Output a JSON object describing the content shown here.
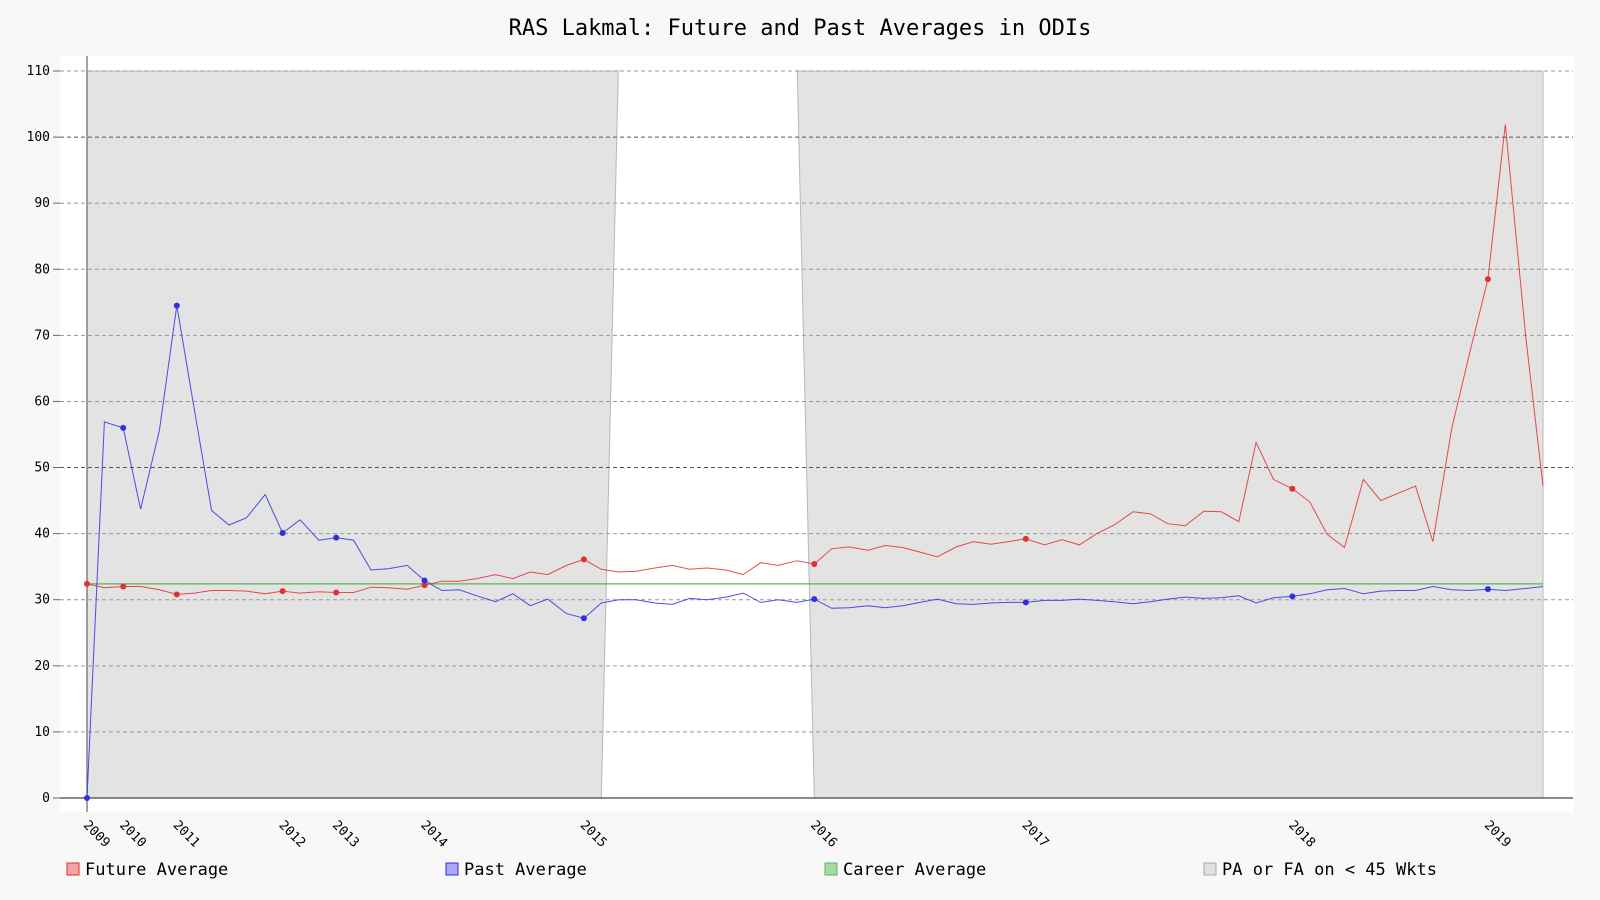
{
  "chart_data": {
    "type": "line",
    "title": "RAS Lakmal: Future and Past Averages in ODIs",
    "xlabel": "",
    "ylabel": "",
    "ylim": [
      0,
      110
    ],
    "yticks": [
      0,
      10,
      20,
      30,
      40,
      50,
      60,
      70,
      80,
      90,
      100,
      110
    ],
    "xlim": [
      2009.0,
      2019.6
    ],
    "xticks": [
      {
        "label": "2009",
        "x": 2009.0
      },
      {
        "label": "2010",
        "x": 2009.25
      },
      {
        "label": "2011",
        "x": 2009.62
      },
      {
        "label": "2012",
        "x": 2010.35
      },
      {
        "label": "2013",
        "x": 2010.72
      },
      {
        "label": "2014",
        "x": 2011.33
      },
      {
        "label": "2015",
        "x": 2012.43
      },
      {
        "label": "2016",
        "x": 2014.02
      },
      {
        "label": "2017",
        "x": 2015.48
      },
      {
        "label": "2018",
        "x": 2017.32
      },
      {
        "label": "2019",
        "x": 2018.67
      }
    ],
    "grid": true,
    "legend_position": "bottom",
    "colors": {
      "future": "#e03030",
      "past": "#3030e0",
      "career": "#5ab45a",
      "shade": "#e3e3e3",
      "grid": "#888888"
    },
    "shaded_regions": [
      {
        "from": 2009.0,
        "to": 2012.55
      },
      {
        "from": 2014.02,
        "to": 2019.05
      }
    ],
    "shade_name": "PA or FA on < 45 Wkts",
    "career_average": {
      "name": "Career Average",
      "value": 32.4
    },
    "series": [
      {
        "name": "Future Average",
        "key": "future",
        "points": [
          [
            2009.0,
            32.4
          ],
          [
            2009.12,
            31.8
          ],
          [
            2009.25,
            32.0
          ],
          [
            2009.37,
            32.0
          ],
          [
            2009.5,
            31.5
          ],
          [
            2009.62,
            30.8
          ],
          [
            2009.74,
            31.0
          ],
          [
            2009.86,
            31.4
          ],
          [
            2009.98,
            31.4
          ],
          [
            2010.1,
            31.3
          ],
          [
            2010.23,
            30.9
          ],
          [
            2010.35,
            31.3
          ],
          [
            2010.47,
            31.0
          ],
          [
            2010.6,
            31.2
          ],
          [
            2010.72,
            31.1
          ],
          [
            2010.84,
            31.1
          ],
          [
            2010.96,
            31.9
          ],
          [
            2011.08,
            31.8
          ],
          [
            2011.21,
            31.6
          ],
          [
            2011.33,
            32.2
          ],
          [
            2011.45,
            32.8
          ],
          [
            2011.57,
            32.8
          ],
          [
            2011.69,
            33.2
          ],
          [
            2011.82,
            33.8
          ],
          [
            2011.94,
            33.2
          ],
          [
            2012.06,
            34.2
          ],
          [
            2012.18,
            33.8
          ],
          [
            2012.31,
            35.2
          ],
          [
            2012.43,
            36.1
          ],
          [
            2012.55,
            34.6
          ],
          [
            2012.67,
            34.2
          ],
          [
            2012.79,
            34.3
          ],
          [
            2012.92,
            34.8
          ],
          [
            2013.04,
            35.2
          ],
          [
            2013.16,
            34.6
          ],
          [
            2013.28,
            34.8
          ],
          [
            2013.41,
            34.5
          ],
          [
            2013.53,
            33.8
          ],
          [
            2013.65,
            35.6
          ],
          [
            2013.77,
            35.2
          ],
          [
            2013.9,
            35.9
          ],
          [
            2014.02,
            35.4
          ],
          [
            2014.14,
            37.7
          ],
          [
            2014.26,
            38.0
          ],
          [
            2014.39,
            37.5
          ],
          [
            2014.51,
            38.2
          ],
          [
            2014.63,
            37.9
          ],
          [
            2014.75,
            37.2
          ],
          [
            2014.87,
            36.5
          ],
          [
            2015.0,
            38.0
          ],
          [
            2015.12,
            38.8
          ],
          [
            2015.24,
            38.4
          ],
          [
            2015.36,
            38.8
          ],
          [
            2015.48,
            39.2
          ],
          [
            2015.61,
            38.3
          ],
          [
            2015.73,
            39.1
          ],
          [
            2015.85,
            38.3
          ],
          [
            2015.97,
            40.0
          ],
          [
            2016.09,
            41.3
          ],
          [
            2016.22,
            43.3
          ],
          [
            2016.34,
            43.0
          ],
          [
            2016.46,
            41.5
          ],
          [
            2016.58,
            41.2
          ],
          [
            2016.71,
            43.4
          ],
          [
            2016.83,
            43.3
          ],
          [
            2016.95,
            41.8
          ],
          [
            2017.07,
            53.8
          ],
          [
            2017.19,
            48.2
          ],
          [
            2017.32,
            46.8
          ],
          [
            2017.44,
            44.8
          ],
          [
            2017.56,
            39.9
          ],
          [
            2017.68,
            37.9
          ],
          [
            2017.81,
            48.2
          ],
          [
            2017.93,
            45.0
          ],
          [
            2018.05,
            46.1
          ],
          [
            2018.17,
            47.2
          ],
          [
            2018.29,
            38.8
          ],
          [
            2018.42,
            55.9
          ],
          [
            2018.54,
            67.0
          ],
          [
            2018.67,
            78.5
          ],
          [
            2018.79,
            101.9
          ],
          [
            2018.93,
            70.0
          ],
          [
            2019.05,
            47.2
          ]
        ],
        "markers": [
          [
            2009.0,
            32.4
          ],
          [
            2009.25,
            32.0
          ],
          [
            2009.62,
            30.8
          ],
          [
            2010.35,
            31.3
          ],
          [
            2010.72,
            31.1
          ],
          [
            2011.33,
            32.2
          ],
          [
            2012.43,
            36.1
          ],
          [
            2014.02,
            35.4
          ],
          [
            2015.48,
            39.2
          ],
          [
            2017.32,
            46.8
          ],
          [
            2018.67,
            78.5
          ]
        ]
      },
      {
        "name": "Past Average",
        "key": "past",
        "points": [
          [
            2009.0,
            0.0
          ],
          [
            2009.12,
            56.9
          ],
          [
            2009.25,
            56.0
          ],
          [
            2009.37,
            43.7
          ],
          [
            2009.5,
            55.6
          ],
          [
            2009.62,
            74.5
          ],
          [
            2009.74,
            58.9
          ],
          [
            2009.86,
            43.5
          ],
          [
            2009.98,
            41.3
          ],
          [
            2010.1,
            42.4
          ],
          [
            2010.23,
            45.9
          ],
          [
            2010.35,
            40.1
          ],
          [
            2010.47,
            42.1
          ],
          [
            2010.6,
            39.0
          ],
          [
            2010.72,
            39.4
          ],
          [
            2010.84,
            39.0
          ],
          [
            2010.96,
            34.5
          ],
          [
            2011.08,
            34.7
          ],
          [
            2011.21,
            35.2
          ],
          [
            2011.33,
            32.9
          ],
          [
            2011.45,
            31.4
          ],
          [
            2011.57,
            31.5
          ],
          [
            2011.69,
            30.6
          ],
          [
            2011.82,
            29.7
          ],
          [
            2011.94,
            30.9
          ],
          [
            2012.06,
            29.1
          ],
          [
            2012.18,
            30.1
          ],
          [
            2012.31,
            27.9
          ],
          [
            2012.43,
            27.2
          ],
          [
            2012.55,
            29.5
          ],
          [
            2012.67,
            30.0
          ],
          [
            2012.79,
            30.0
          ],
          [
            2012.92,
            29.5
          ],
          [
            2013.04,
            29.3
          ],
          [
            2013.16,
            30.2
          ],
          [
            2013.28,
            30.0
          ],
          [
            2013.41,
            30.4
          ],
          [
            2013.53,
            31.0
          ],
          [
            2013.65,
            29.6
          ],
          [
            2013.77,
            30.0
          ],
          [
            2013.9,
            29.6
          ],
          [
            2014.02,
            30.1
          ],
          [
            2014.14,
            28.7
          ],
          [
            2014.26,
            28.8
          ],
          [
            2014.39,
            29.1
          ],
          [
            2014.51,
            28.8
          ],
          [
            2014.63,
            29.1
          ],
          [
            2014.75,
            29.6
          ],
          [
            2014.87,
            30.1
          ],
          [
            2015.0,
            29.4
          ],
          [
            2015.12,
            29.3
          ],
          [
            2015.24,
            29.5
          ],
          [
            2015.36,
            29.6
          ],
          [
            2015.48,
            29.6
          ],
          [
            2015.61,
            29.9
          ],
          [
            2015.73,
            29.9
          ],
          [
            2015.85,
            30.1
          ],
          [
            2015.97,
            29.9
          ],
          [
            2016.09,
            29.7
          ],
          [
            2016.22,
            29.4
          ],
          [
            2016.34,
            29.7
          ],
          [
            2016.46,
            30.1
          ],
          [
            2016.58,
            30.4
          ],
          [
            2016.71,
            30.2
          ],
          [
            2016.83,
            30.3
          ],
          [
            2016.95,
            30.6
          ],
          [
            2017.07,
            29.5
          ],
          [
            2017.19,
            30.3
          ],
          [
            2017.32,
            30.5
          ],
          [
            2017.44,
            30.9
          ],
          [
            2017.56,
            31.5
          ],
          [
            2017.68,
            31.7
          ],
          [
            2017.81,
            30.9
          ],
          [
            2017.93,
            31.3
          ],
          [
            2018.05,
            31.4
          ],
          [
            2018.17,
            31.4
          ],
          [
            2018.29,
            32.0
          ],
          [
            2018.42,
            31.5
          ],
          [
            2018.54,
            31.4
          ],
          [
            2018.67,
            31.6
          ],
          [
            2018.79,
            31.4
          ],
          [
            2018.93,
            31.7
          ],
          [
            2019.05,
            32.0
          ]
        ],
        "markers": [
          [
            2009.0,
            0.0
          ],
          [
            2009.25,
            56.0
          ],
          [
            2009.62,
            74.5
          ],
          [
            2010.35,
            40.1
          ],
          [
            2010.72,
            39.4
          ],
          [
            2011.33,
            32.9
          ],
          [
            2012.43,
            27.2
          ],
          [
            2014.02,
            30.1
          ],
          [
            2015.48,
            29.6
          ],
          [
            2017.32,
            30.5
          ],
          [
            2018.67,
            31.6
          ]
        ]
      }
    ],
    "legend": [
      {
        "key": "future",
        "label": "Future Average"
      },
      {
        "key": "past",
        "label": "Past Average"
      },
      {
        "key": "career",
        "label": "Career Average"
      },
      {
        "key": "shade",
        "label": "PA or FA on < 45 Wkts"
      }
    ]
  }
}
